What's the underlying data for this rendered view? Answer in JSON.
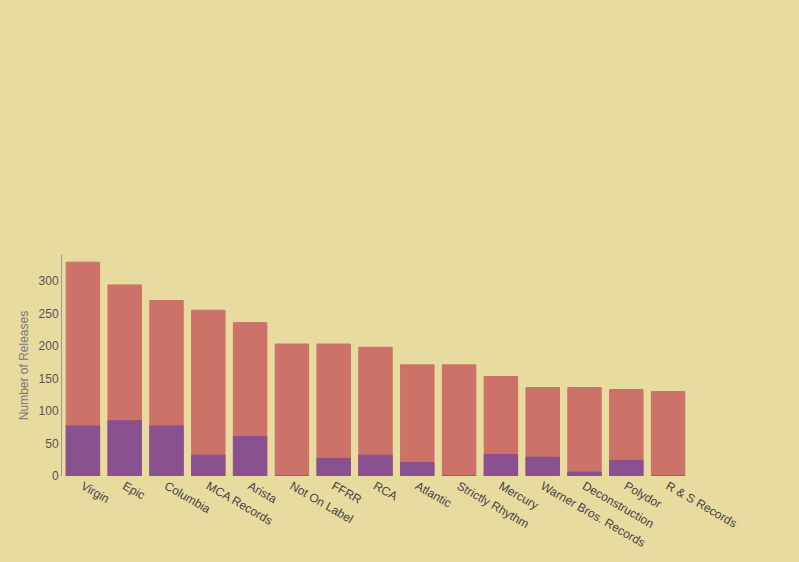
{
  "chart_data": {
    "type": "bar",
    "y_label": "Number of Releases",
    "categories": [
      "Virgin",
      "Epic",
      "Columbia",
      "MCA Records",
      "Arista",
      "Not On Label",
      "FFRR",
      "RCA",
      "Atlantic",
      "Strictly Rhythm",
      "Mercury",
      "Warner Bros. Records",
      "Deconstruction",
      "Polydor",
      "R & S Records"
    ],
    "series": [
      {
        "color": "#c24a55",
        "values": [
          329,
          294,
          270,
          255,
          236,
          203,
          203,
          198,
          171,
          171,
          153,
          136,
          136,
          133,
          130
        ]
      },
      {
        "color": "#7a4a9a",
        "values": [
          77,
          85,
          77,
          32,
          61,
          0,
          27,
          32,
          21,
          0,
          33,
          29,
          6,
          24,
          0
        ]
      }
    ],
    "ylim": [
      0,
      340
    ],
    "yticks": [
      0,
      50,
      100,
      150,
      200,
      250,
      300
    ],
    "grid": false
  }
}
